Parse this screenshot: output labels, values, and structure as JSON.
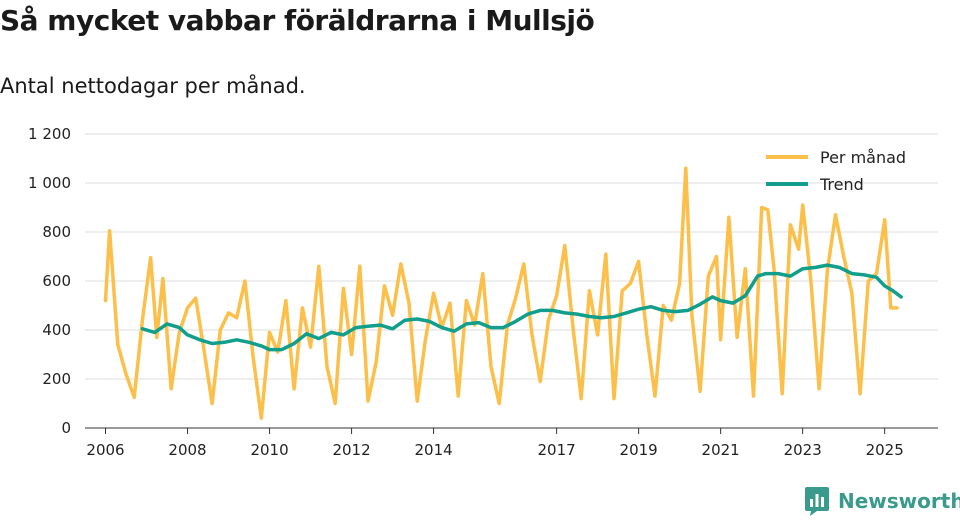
{
  "header": {
    "title": "Så mycket vabbar föräldrarna i Mullsjö",
    "subtitle": "Antal nettodagar per månad."
  },
  "brand": {
    "name": "Newsworthy",
    "icon": "newsworthy-logo-icon",
    "color": "#3a9a8c"
  },
  "chart_data": {
    "type": "line",
    "title": "Så mycket vabbar föräldrarna i Mullsjö",
    "subtitle": "Antal nettodagar per månad.",
    "xlabel": "",
    "ylabel": "",
    "ylim": [
      0,
      1200
    ],
    "xlim": [
      2005.5,
      2026.3
    ],
    "y_ticks": [
      0,
      200,
      400,
      600,
      800,
      1000,
      1200
    ],
    "y_tick_labels": [
      "0",
      "200",
      "400",
      "600",
      "800",
      "1 000",
      "1 200"
    ],
    "x_ticks": [
      2006,
      2008,
      2010,
      2012,
      2014,
      2017,
      2019,
      2021,
      2023,
      2025
    ],
    "x_tick_labels": [
      "2006",
      "2008",
      "2010",
      "2012",
      "2014",
      "2017",
      "2019",
      "2021",
      "2023",
      "2025"
    ],
    "grid": "horizontal",
    "legend_position": "top-right",
    "legend": [
      "Per månad",
      "Trend"
    ],
    "series": [
      {
        "name": "Per månad",
        "color": "#fcbf49",
        "x": [
          2006.0,
          2006.1,
          2006.3,
          2006.5,
          2006.7,
          2006.9,
          2007.1,
          2007.25,
          2007.4,
          2007.6,
          2007.8,
          2008.0,
          2008.2,
          2008.4,
          2008.6,
          2008.8,
          2009.0,
          2009.2,
          2009.4,
          2009.6,
          2009.8,
          2010.0,
          2010.2,
          2010.4,
          2010.6,
          2010.8,
          2011.0,
          2011.2,
          2011.4,
          2011.6,
          2011.8,
          2012.0,
          2012.2,
          2012.4,
          2012.6,
          2012.8,
          2013.0,
          2013.2,
          2013.4,
          2013.6,
          2013.8,
          2014.0,
          2014.2,
          2014.4,
          2014.6,
          2014.8,
          2015.0,
          2015.2,
          2015.4,
          2015.6,
          2015.8,
          2016.0,
          2016.2,
          2016.4,
          2016.6,
          2016.8,
          2017.0,
          2017.2,
          2017.4,
          2017.6,
          2017.8,
          2018.0,
          2018.2,
          2018.4,
          2018.6,
          2018.8,
          2019.0,
          2019.2,
          2019.4,
          2019.6,
          2019.8,
          2020.0,
          2020.15,
          2020.3,
          2020.5,
          2020.7,
          2020.9,
          2021.0,
          2021.2,
          2021.4,
          2021.6,
          2021.8,
          2022.0,
          2022.15,
          2022.3,
          2022.5,
          2022.7,
          2022.9,
          2023.0,
          2023.2,
          2023.4,
          2023.6,
          2023.8,
          2024.0,
          2024.2,
          2024.4,
          2024.6,
          2024.8,
          2025.0,
          2025.15,
          2025.3
        ],
        "values": [
          520,
          805,
          340,
          220,
          125,
          440,
          695,
          370,
          610,
          160,
          390,
          490,
          530,
          320,
          100,
          400,
          470,
          450,
          600,
          290,
          40,
          390,
          310,
          520,
          160,
          490,
          330,
          660,
          250,
          100,
          570,
          300,
          660,
          110,
          270,
          580,
          460,
          670,
          510,
          110,
          360,
          550,
          410,
          510,
          130,
          520,
          420,
          630,
          250,
          100,
          420,
          530,
          670,
          380,
          190,
          440,
          540,
          745,
          410,
          120,
          560,
          380,
          710,
          120,
          560,
          590,
          680,
          380,
          130,
          500,
          440,
          590,
          1060,
          460,
          150,
          620,
          700,
          360,
          860,
          370,
          650,
          130,
          900,
          890,
          650,
          140,
          830,
          730,
          910,
          600,
          160,
          640,
          870,
          700,
          550,
          140,
          600,
          630,
          850,
          490,
          490
        ]
      },
      {
        "name": "Trend",
        "color": "#119e8b",
        "x": [
          2006.9,
          2007.2,
          2007.5,
          2007.8,
          2008.0,
          2008.3,
          2008.6,
          2008.9,
          2009.2,
          2009.5,
          2009.8,
          2010.0,
          2010.3,
          2010.6,
          2010.9,
          2011.2,
          2011.5,
          2011.8,
          2012.1,
          2012.4,
          2012.7,
          2013.0,
          2013.3,
          2013.6,
          2013.9,
          2014.2,
          2014.5,
          2014.8,
          2015.1,
          2015.4,
          2015.7,
          2016.0,
          2016.3,
          2016.6,
          2016.9,
          2017.2,
          2017.5,
          2017.8,
          2018.1,
          2018.4,
          2018.7,
          2019.0,
          2019.3,
          2019.6,
          2019.9,
          2020.2,
          2020.5,
          2020.8,
          2021.0,
          2021.3,
          2021.6,
          2021.9,
          2022.1,
          2022.4,
          2022.7,
          2023.0,
          2023.3,
          2023.6,
          2023.9,
          2024.2,
          2024.5,
          2024.8,
          2025.0,
          2025.2,
          2025.4
        ],
        "values": [
          405,
          390,
          425,
          410,
          380,
          360,
          345,
          350,
          360,
          350,
          335,
          320,
          320,
          345,
          385,
          365,
          390,
          380,
          410,
          415,
          420,
          405,
          440,
          445,
          435,
          410,
          395,
          425,
          430,
          410,
          410,
          435,
          465,
          480,
          480,
          470,
          465,
          455,
          450,
          455,
          470,
          485,
          495,
          480,
          475,
          480,
          505,
          535,
          520,
          510,
          540,
          620,
          630,
          630,
          620,
          650,
          655,
          665,
          655,
          630,
          625,
          615,
          580,
          560,
          535
        ]
      }
    ]
  }
}
